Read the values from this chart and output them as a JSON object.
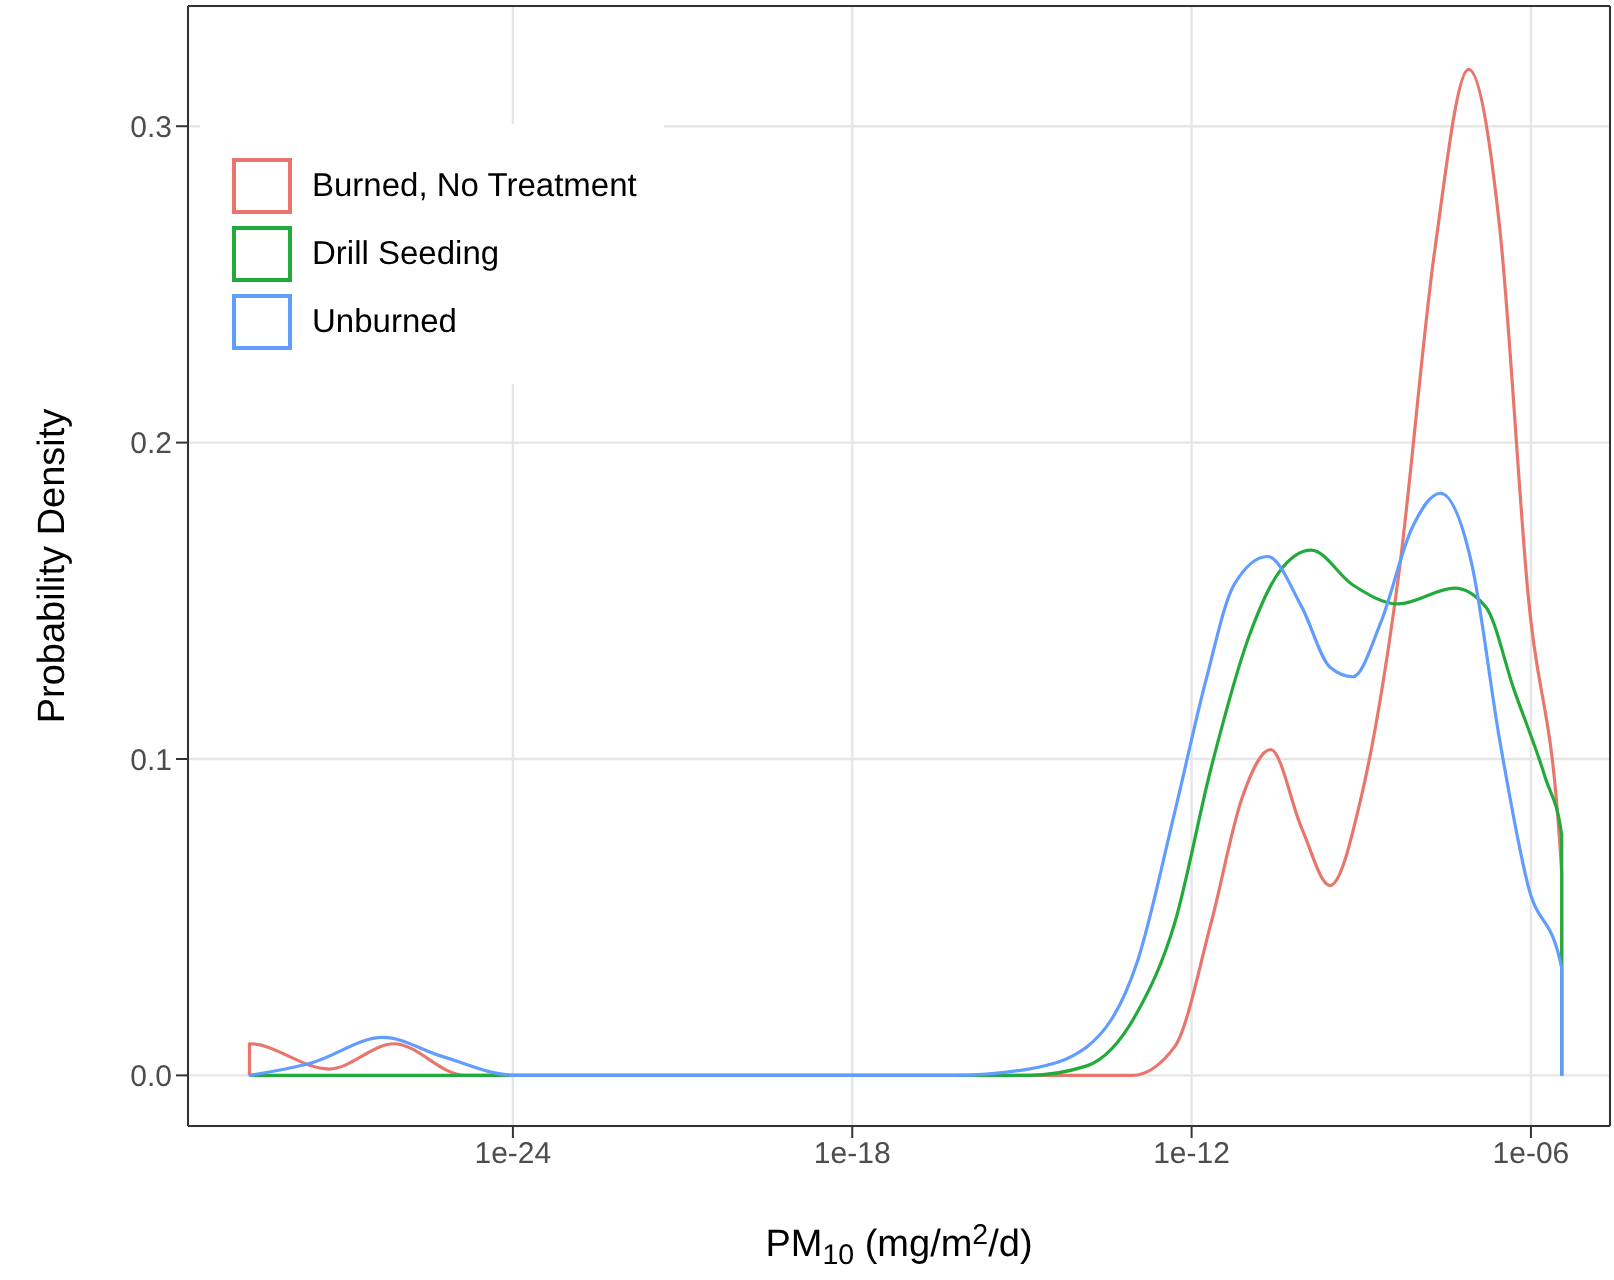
{
  "chart_data": {
    "type": "line",
    "xlabel": "PM$_{10}$ (mg/m$^{2}$/d)",
    "ylabel": "Probability Density",
    "log": "x",
    "xlim": [
      1.8e-30,
      2.5e-05
    ],
    "xticks": [
      {
        "value": 1e-24,
        "label": "1e-24"
      },
      {
        "value": 1e-18,
        "label": "1e-18"
      },
      {
        "value": 1e-12,
        "label": "1e-12"
      },
      {
        "value": 1e-06,
        "label": "1e-06"
      }
    ],
    "ylim": [
      -0.016,
      0.338
    ],
    "yticks": [
      {
        "value": 0,
        "label": "0.0"
      },
      {
        "value": 0.1,
        "label": "0.1"
      },
      {
        "value": 0.2,
        "label": "0.2"
      },
      {
        "value": 0.3,
        "label": "0.3"
      }
    ],
    "grid": true,
    "legend": "top left",
    "marker": "none",
    "line_style": "solid",
    "series": [
      {
        "name": "Burned, No Treatment",
        "color": "#e8766d",
        "x": [
          2.2e-29,
          2.2e-29,
          5.6e-28,
          7.9e-27,
          1.4e-25,
          8.9e-14,
          5e-13,
          2.2e-12,
          7.9e-12,
          2.5e-11,
          8.9e-11,
          2.8e-10,
          1e-09,
          4.5e-09,
          2e-08,
          7.9e-08,
          2.8e-07,
          8.9e-07,
          3.5e-06,
          3.5e-06
        ],
        "values": [
          0,
          0.01,
          0.002,
          0.01,
          0,
          0,
          0.009,
          0.048,
          0.088,
          0.103,
          0.078,
          0.06,
          0.088,
          0.157,
          0.261,
          0.318,
          0.268,
          0.152,
          0.064,
          0
        ]
      },
      {
        "name": "Drill Seeding",
        "color": "#22aa3a",
        "x": [
          2.2e-29,
          1.3e-15,
          1.4e-14,
          1.1e-13,
          5e-13,
          2.2e-12,
          1e-11,
          3.5e-11,
          1.3e-10,
          7.1e-10,
          4.5e-09,
          4.5e-08,
          1.6e-07,
          5e-07,
          1.8e-06,
          3.5e-06,
          3.5e-06
        ],
        "values": [
          0,
          0,
          0.003,
          0.02,
          0.048,
          0.097,
          0.138,
          0.159,
          0.166,
          0.155,
          0.149,
          0.154,
          0.148,
          0.122,
          0.094,
          0.076,
          0
        ]
      },
      {
        "name": "Unburned",
        "color": "#619cff",
        "x": [
          2.2e-29,
          2.8e-28,
          5e-27,
          5.6e-26,
          1.1e-24,
          6.3e-17,
          1.3e-15,
          1.4e-14,
          1.1e-13,
          5e-13,
          1.8e-12,
          5.6e-12,
          2.2e-11,
          8.9e-11,
          2.8e-10,
          7.1e-10,
          2.2e-09,
          7.9e-09,
          2.5e-08,
          8.9e-08,
          2.8e-07,
          8.9e-07,
          3.5e-06,
          3.5e-06
        ],
        "values": [
          0,
          0.004,
          0.012,
          0.006,
          0,
          0,
          0.002,
          0.009,
          0.036,
          0.083,
          0.125,
          0.155,
          0.164,
          0.148,
          0.129,
          0.126,
          0.143,
          0.173,
          0.184,
          0.162,
          0.106,
          0.06,
          0.034,
          0
        ]
      }
    ]
  }
}
